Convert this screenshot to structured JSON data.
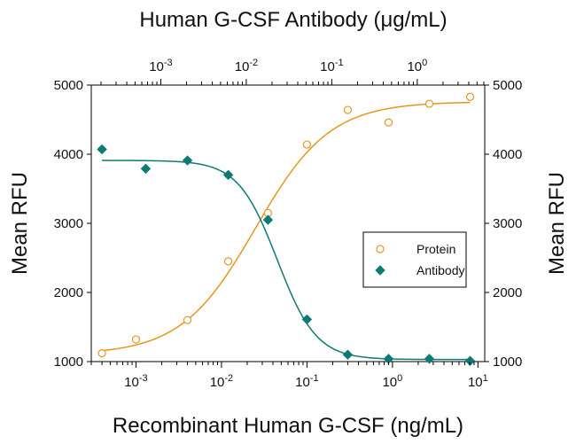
{
  "chart_data": {
    "type": "scatter",
    "title": "",
    "top_axis_label": "Human G-CSF Antibody (μg/mL)",
    "top_axis_ticks": [
      {
        "base": "10",
        "exp": "-3",
        "value": 0.001
      },
      {
        "base": "10",
        "exp": "-2",
        "value": 0.01
      },
      {
        "base": "10",
        "exp": "-1",
        "value": 0.1
      },
      {
        "base": "10",
        "exp": "0",
        "value": 1
      }
    ],
    "xlabel": "Recombinant Human G-CSF (ng/mL)",
    "x_scale": "log",
    "xlim": [
      0.0003,
      12
    ],
    "x_ticks": [
      {
        "base": "10",
        "exp": "-3",
        "value": 0.001
      },
      {
        "base": "10",
        "exp": "-2",
        "value": 0.01
      },
      {
        "base": "10",
        "exp": "-1",
        "value": 0.1
      },
      {
        "base": "10",
        "exp": "0",
        "value": 1
      },
      {
        "base": "10",
        "exp": "1",
        "value": 10
      }
    ],
    "ylabel": "Mean RFU",
    "y2label": "Mean RFU",
    "ylim": [
      1000,
      5000
    ],
    "y_ticks": [
      1000,
      2000,
      3000,
      4000,
      5000
    ],
    "legend_position": "center-right",
    "series": [
      {
        "name": "Protein",
        "color": "#E8951E",
        "marker": "open-circle",
        "x": [
          0.0004,
          0.001,
          0.004,
          0.012,
          0.035,
          0.1,
          0.3,
          0.9,
          2.7,
          8.1
        ],
        "y": [
          1120,
          1320,
          1600,
          2450,
          3150,
          4140,
          4640,
          4460,
          4730,
          4830
        ],
        "fit": {
          "bottom": 1100,
          "top": 4760,
          "ec50": 0.025,
          "hill": 1.0
        }
      },
      {
        "name": "Antibody",
        "color": "#0D7A73",
        "marker": "filled-diamond",
        "x": [
          0.0004,
          0.0013,
          0.004,
          0.012,
          0.035,
          0.1,
          0.3,
          0.9,
          2.7,
          8.1
        ],
        "y": [
          4070,
          3790,
          3910,
          3700,
          3050,
          1610,
          1100,
          1040,
          1040,
          1010
        ],
        "fit": {
          "bottom": 1030,
          "top": 3910,
          "ec50": 0.045,
          "hill": 1.9
        }
      }
    ]
  }
}
